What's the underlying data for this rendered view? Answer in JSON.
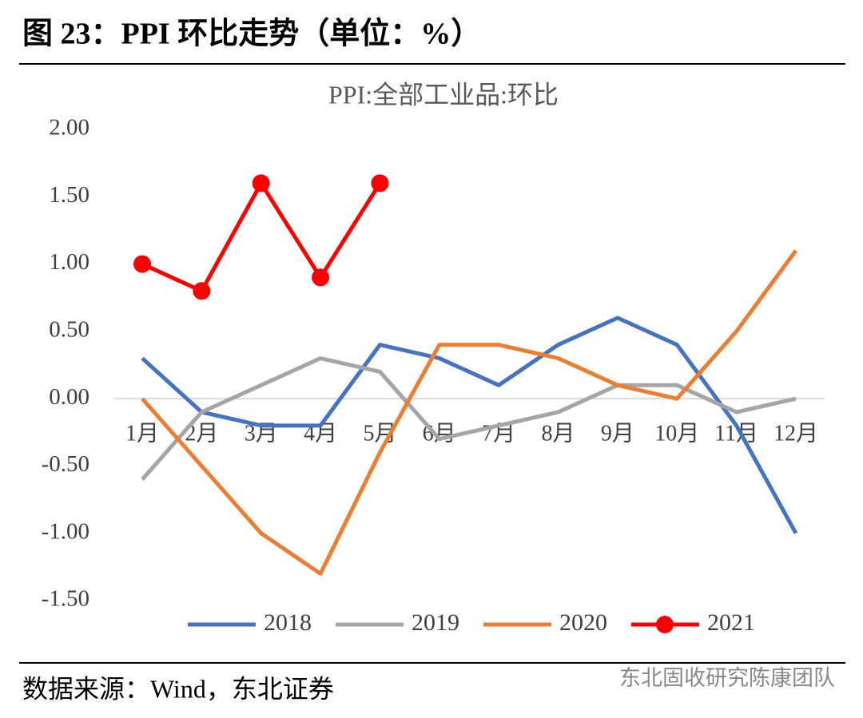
{
  "figure_title": "图 23：PPI 环比走势（单位：%）",
  "source": "数据来源：Wind，东北证券",
  "watermark": "东北固收研究陈康团队",
  "chart_data": {
    "type": "line",
    "title": "PPI:全部工业品:环比",
    "categories": [
      "1月",
      "2月",
      "3月",
      "4月",
      "5月",
      "6月",
      "7月",
      "8月",
      "9月",
      "10月",
      "11月",
      "12月"
    ],
    "series": [
      {
        "name": "2018",
        "color": "#4472c4",
        "values": [
          0.3,
          -0.1,
          -0.2,
          -0.2,
          0.4,
          0.3,
          0.1,
          0.4,
          0.6,
          0.4,
          -0.2,
          -1.0
        ]
      },
      {
        "name": "2019",
        "color": "#a5a5a5",
        "values": [
          -0.6,
          -0.1,
          0.1,
          0.3,
          0.2,
          -0.3,
          -0.2,
          -0.1,
          0.1,
          0.1,
          -0.1,
          0.0
        ]
      },
      {
        "name": "2020",
        "color": "#ed7d31",
        "values": [
          0.0,
          -0.5,
          -1.0,
          -1.3,
          -0.4,
          0.4,
          0.4,
          0.3,
          0.1,
          0.0,
          0.5,
          1.1
        ]
      },
      {
        "name": "2021",
        "color": "#ff0000",
        "markers": true,
        "values": [
          1.0,
          0.8,
          1.6,
          0.9,
          1.6,
          null,
          null,
          null,
          null,
          null,
          null,
          null
        ]
      }
    ],
    "ylim": [
      -1.5,
      2.0
    ],
    "yticks": [
      {
        "value": 2.0,
        "label": "2.00"
      },
      {
        "value": 1.5,
        "label": "1.50"
      },
      {
        "value": 1.0,
        "label": "1.00"
      },
      {
        "value": 0.5,
        "label": "0.50"
      },
      {
        "value": 0.0,
        "label": "0.00"
      },
      {
        "value": -0.5,
        "label": "-0.50"
      },
      {
        "value": -1.0,
        "label": "-1.00"
      },
      {
        "value": -1.5,
        "label": "-1.50"
      }
    ],
    "legend": "bottom"
  }
}
